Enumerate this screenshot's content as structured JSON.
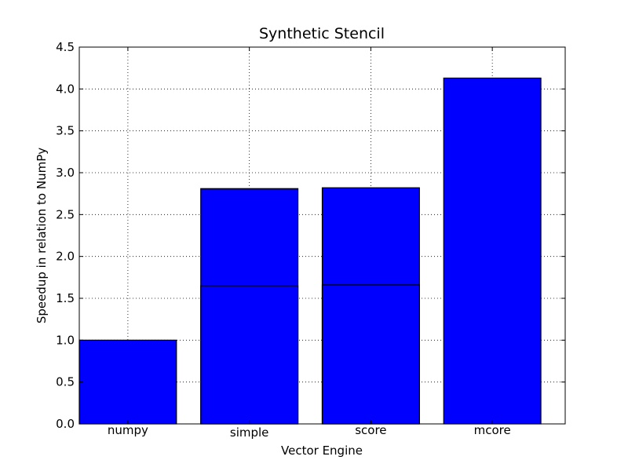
{
  "chart_data": {
    "type": "bar",
    "title": "Synthetic Stencil",
    "xlabel": "Vector Engine",
    "ylabel": "Speedup in relation to NumPy",
    "categories": [
      "numpy",
      "simple",
      "score",
      "mcore"
    ],
    "series": [
      {
        "values": [
          1.0,
          2.81,
          2.82,
          4.13
        ]
      },
      {
        "values": [
          null,
          1.65,
          1.66,
          null
        ]
      }
    ],
    "ylim": [
      0,
      4.5
    ],
    "yticks": [
      0.0,
      0.5,
      1.0,
      1.5,
      2.0,
      2.5,
      3.0,
      3.5,
      4.0,
      4.5
    ],
    "ytick_labels": [
      "0.0",
      "0.5",
      "1.0",
      "1.5",
      "2.0",
      "2.5",
      "3.0",
      "3.5",
      "4.0",
      "4.5"
    ],
    "grid": true,
    "bar_color": "#0000ff",
    "edge_color": "#000000"
  }
}
